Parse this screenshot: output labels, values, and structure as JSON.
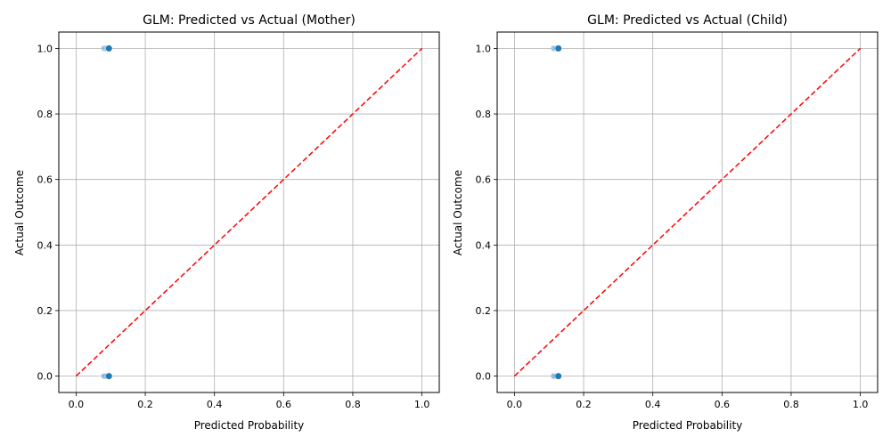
{
  "chart_data": [
    {
      "type": "scatter",
      "title": "GLM: Predicted vs Actual (Mother)",
      "xlabel": "Predicted Probability",
      "ylabel": "Actual Outcome",
      "xlim": [
        -0.05,
        1.05
      ],
      "ylim": [
        -0.05,
        1.05
      ],
      "xticks": [
        "0.0",
        "0.2",
        "0.4",
        "0.6",
        "0.8",
        "1.0"
      ],
      "yticks": [
        "0.0",
        "0.2",
        "0.4",
        "0.6",
        "0.8",
        "1.0"
      ],
      "grid": true,
      "points": [
        {
          "x": 0.083,
          "y": 1
        },
        {
          "x": 0.086,
          "y": 1
        },
        {
          "x": 0.089,
          "y": 1
        },
        {
          "x": 0.092,
          "y": 1
        },
        {
          "x": 0.095,
          "y": 1
        },
        {
          "x": 0.083,
          "y": 0
        },
        {
          "x": 0.086,
          "y": 0
        },
        {
          "x": 0.089,
          "y": 0
        },
        {
          "x": 0.092,
          "y": 0
        },
        {
          "x": 0.095,
          "y": 0
        }
      ],
      "reference_line": {
        "x": [
          0,
          1
        ],
        "y": [
          0,
          1
        ],
        "color": "#ff0000",
        "style": "dashed"
      },
      "marker_color": "#1f77b4"
    },
    {
      "type": "scatter",
      "title": "GLM: Predicted vs Actual (Child)",
      "xlabel": "Predicted Probability",
      "ylabel": "Actual Outcome",
      "xlim": [
        -0.05,
        1.05
      ],
      "ylim": [
        -0.05,
        1.05
      ],
      "xticks": [
        "0.0",
        "0.2",
        "0.4",
        "0.6",
        "0.8",
        "1.0"
      ],
      "yticks": [
        "0.0",
        "0.2",
        "0.4",
        "0.6",
        "0.8",
        "1.0"
      ],
      "grid": true,
      "points": [
        {
          "x": 0.115,
          "y": 1
        },
        {
          "x": 0.118,
          "y": 1
        },
        {
          "x": 0.121,
          "y": 1
        },
        {
          "x": 0.124,
          "y": 1
        },
        {
          "x": 0.127,
          "y": 1
        },
        {
          "x": 0.115,
          "y": 0
        },
        {
          "x": 0.118,
          "y": 0
        },
        {
          "x": 0.121,
          "y": 0
        },
        {
          "x": 0.124,
          "y": 0
        },
        {
          "x": 0.127,
          "y": 0
        }
      ],
      "reference_line": {
        "x": [
          0,
          1
        ],
        "y": [
          0,
          1
        ],
        "color": "#ff0000",
        "style": "dashed"
      },
      "marker_color": "#1f77b4"
    }
  ]
}
